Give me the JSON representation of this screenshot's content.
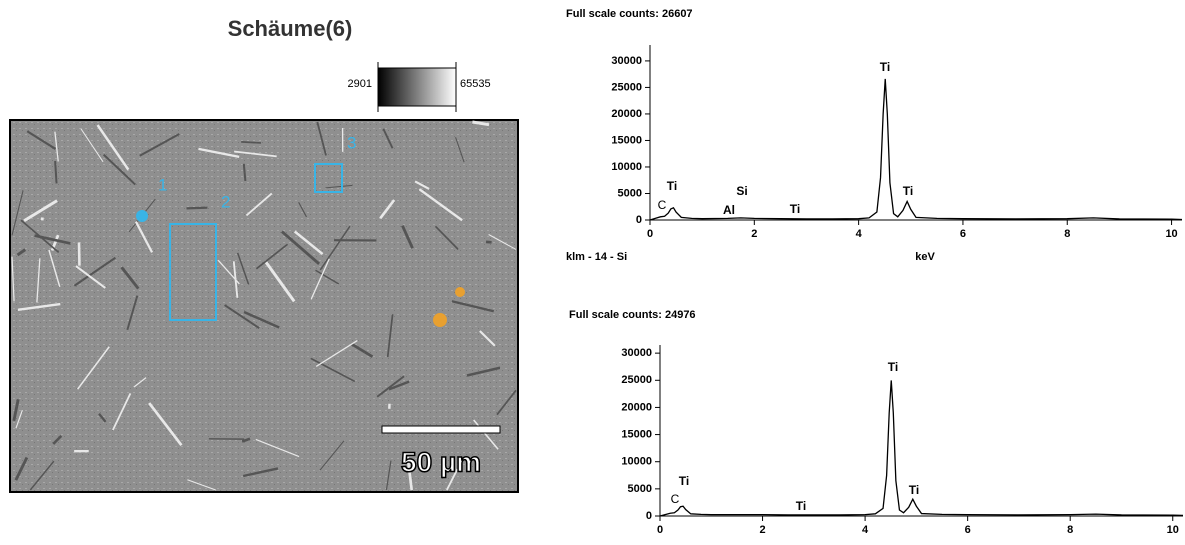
{
  "image": {
    "title": "Schäume(6)",
    "colorbar_min": 2901,
    "colorbar_max": 65535,
    "scale_bar": "50 µm",
    "regions": [
      "1",
      "2",
      "3"
    ]
  },
  "chart_data": [
    {
      "type": "line",
      "title": "Full scale counts: 26607",
      "element_label": "klm - 14 - Si",
      "x_label": "keV",
      "annotations": [
        "C",
        "Ti",
        "Al",
        "Si",
        "Ti",
        "Ti",
        "Ti"
      ],
      "x": [
        0,
        0.1,
        0.2,
        0.28,
        0.35,
        0.4,
        0.45,
        0.5,
        0.6,
        0.8,
        1.0,
        1.49,
        1.74,
        2.0,
        2.5,
        3.0,
        3.5,
        4.0,
        4.2,
        4.35,
        4.42,
        4.47,
        4.51,
        4.55,
        4.6,
        4.67,
        4.75,
        4.85,
        4.93,
        5.0,
        5.1,
        5.5,
        6,
        7,
        8,
        8.5,
        9,
        10,
        10.2
      ],
      "values": [
        0,
        300,
        600,
        700,
        1300,
        2100,
        2300,
        1500,
        500,
        300,
        250,
        300,
        400,
        300,
        250,
        200,
        200,
        250,
        400,
        1500,
        8000,
        20000,
        26607,
        20000,
        7000,
        1200,
        600,
        1800,
        3500,
        2000,
        500,
        300,
        250,
        200,
        250,
        400,
        200,
        150,
        100
      ],
      "color": "#000000",
      "xlim": [
        0,
        10.2
      ],
      "ylim": [
        0,
        33000
      ],
      "xticks": [
        0,
        2,
        4,
        6,
        8,
        10
      ],
      "yticks": [
        0,
        5000,
        10000,
        15000,
        20000,
        25000,
        30000
      ]
    },
    {
      "type": "line",
      "title": "Full scale counts: 24976",
      "annotations": [
        "C",
        "Ti",
        "Ti",
        "Ti",
        "Ti"
      ],
      "x": [
        0,
        0.1,
        0.2,
        0.28,
        0.35,
        0.4,
        0.45,
        0.5,
        0.6,
        0.8,
        1.0,
        1.5,
        2.0,
        2.5,
        3.0,
        3.5,
        4.0,
        4.2,
        4.35,
        4.42,
        4.47,
        4.51,
        4.55,
        4.6,
        4.67,
        4.75,
        4.85,
        4.93,
        5.0,
        5.1,
        5.5,
        6,
        7,
        8,
        8.5,
        9,
        10,
        10.2
      ],
      "values": [
        0,
        250,
        500,
        600,
        1100,
        1700,
        1800,
        1200,
        400,
        300,
        250,
        250,
        250,
        200,
        200,
        200,
        250,
        400,
        1400,
        7500,
        19000,
        24976,
        19000,
        6500,
        1100,
        600,
        1600,
        3100,
        1800,
        450,
        300,
        250,
        200,
        250,
        350,
        200,
        150,
        100
      ],
      "color": "#000000",
      "xlim": [
        0,
        10.2
      ],
      "ylim": [
        0,
        31500
      ],
      "xticks": [
        0,
        2,
        4,
        6,
        8,
        10
      ],
      "yticks": [
        0,
        5000,
        10000,
        15000,
        20000,
        25000,
        30000
      ]
    }
  ]
}
